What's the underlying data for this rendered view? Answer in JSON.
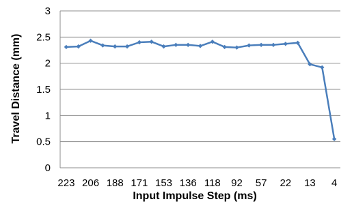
{
  "chart_data": {
    "type": "line",
    "title": "",
    "xlabel": "Input Impulse Step (ms)",
    "ylabel": "Travel Distance (mm)",
    "ylim": [
      0,
      3
    ],
    "yticks": [
      "0",
      "0.5",
      "1",
      "1.5",
      "2",
      "2.5",
      "3"
    ],
    "grid": "horizontal",
    "legend": "none",
    "x_tick_labels": [
      "223",
      "206",
      "188",
      "171",
      "153",
      "136",
      "118",
      "92",
      "57",
      "22",
      "13",
      "4"
    ],
    "series": [
      {
        "color": "#4a7ebb",
        "values": [
          2.31,
          2.32,
          2.43,
          2.34,
          2.32,
          2.32,
          2.4,
          2.41,
          2.32,
          2.35,
          2.35,
          2.33,
          2.41,
          2.31,
          2.3,
          2.34,
          2.35,
          2.35,
          2.37,
          2.39,
          1.98,
          1.92,
          0.55
        ]
      }
    ]
  }
}
